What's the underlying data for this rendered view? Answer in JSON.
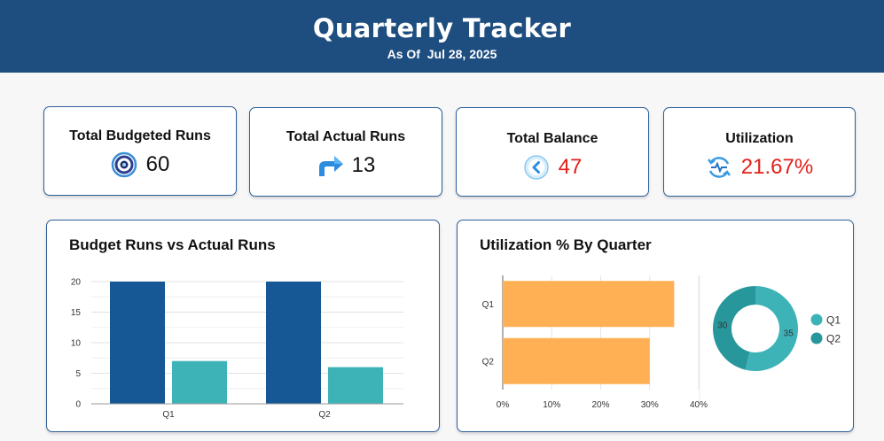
{
  "header": {
    "title": "Quarterly Tracker",
    "subtitle": "As Of  Jul 28, 2025"
  },
  "kpis": [
    {
      "label": "Total Budgeted Runs",
      "value": "60",
      "icon": "target-icon",
      "value_color": "#111111"
    },
    {
      "label": "Total Actual Runs",
      "value": "13",
      "icon": "arrow-turn-icon",
      "value_color": "#111111"
    },
    {
      "label": "Total Balance",
      "value": "47",
      "icon": "chevron-left-circle-icon",
      "value_color": "#e3201b"
    },
    {
      "label": "Utilization",
      "value": "21.67%",
      "icon": "refresh-pulse-icon",
      "value_color": "#e3201b"
    }
  ],
  "colors": {
    "header_bg": "#1e4e80",
    "budget_bar": "#155895",
    "actual_bar": "#3db3b8",
    "utilization_bar": "#ffb054",
    "donut_q1": "#3db3b8",
    "donut_q2": "#27979c"
  },
  "chart_data": [
    {
      "type": "bar",
      "title": "Budget Runs vs Actual Runs",
      "categories": [
        "Q1",
        "Q2"
      ],
      "series": [
        {
          "values": [
            20,
            20
          ]
        },
        {
          "values": [
            7,
            6
          ]
        }
      ],
      "ylim": [
        0,
        20
      ],
      "yticks": [
        "0",
        "5",
        "10",
        "15",
        "20"
      ],
      "grid": true
    },
    {
      "type": "bar",
      "orientation": "horizontal",
      "title": "Utilization % By Quarter",
      "categories": [
        "Q1",
        "Q2"
      ],
      "values": [
        35,
        30
      ],
      "xlim": [
        0,
        40
      ],
      "xticks": [
        "0%",
        "10%",
        "20%",
        "30%",
        "40%"
      ],
      "grid": true
    },
    {
      "type": "pie",
      "style": "donut",
      "labels": [
        "Q1",
        "Q2"
      ],
      "values": [
        35,
        30
      ],
      "data_labels": [
        "35",
        "30"
      ],
      "legend": "right"
    }
  ]
}
